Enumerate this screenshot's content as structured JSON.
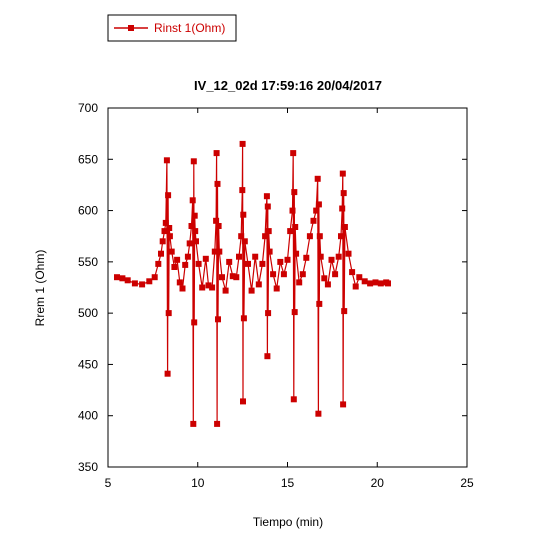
{
  "chart_data": {
    "type": "line",
    "title": "IV_12_02d 17:59:16  20/04/2017",
    "xlabel": "Tiempo (min)",
    "ylabel": "Rrem 1 (Ohm)",
    "xlim": [
      5,
      25
    ],
    "ylim": [
      350,
      700
    ],
    "xticks": [
      5,
      10,
      15,
      20,
      25
    ],
    "yticks": [
      350,
      400,
      450,
      500,
      550,
      600,
      650,
      700
    ],
    "grid": false,
    "legend": {
      "position": "top-left",
      "entries": [
        "Rinst 1(Ohm)"
      ]
    },
    "series": [
      {
        "name": "Rinst 1(Ohm)",
        "color": "#cc0000",
        "marker": "square",
        "x": [
          5.5,
          5.8,
          6.1,
          6.5,
          6.9,
          7.3,
          7.6,
          7.8,
          7.95,
          8.05,
          8.15,
          8.22,
          8.28,
          8.32,
          8.35,
          8.38,
          8.41,
          8.45,
          8.55,
          8.7,
          8.85,
          9.0,
          9.15,
          9.3,
          9.45,
          9.55,
          9.65,
          9.72,
          9.75,
          9.78,
          9.8,
          9.83,
          9.86,
          9.9,
          10.05,
          10.25,
          10.45,
          10.6,
          10.8,
          10.95,
          11.02,
          11.05,
          11.08,
          11.1,
          11.13,
          11.16,
          11.2,
          11.35,
          11.55,
          11.75,
          11.95,
          12.15,
          12.3,
          12.42,
          12.48,
          12.5,
          12.52,
          12.54,
          12.57,
          12.62,
          12.8,
          13.0,
          13.2,
          13.4,
          13.6,
          13.75,
          13.85,
          13.88,
          13.9,
          13.92,
          13.95,
          14.0,
          14.2,
          14.4,
          14.6,
          14.8,
          15.0,
          15.15,
          15.28,
          15.32,
          15.35,
          15.38,
          15.4,
          15.43,
          15.48,
          15.65,
          15.85,
          16.05,
          16.25,
          16.45,
          16.6,
          16.68,
          16.72,
          16.75,
          16.77,
          16.8,
          16.85,
          17.05,
          17.25,
          17.45,
          17.65,
          17.85,
          17.98,
          18.05,
          18.08,
          18.1,
          18.13,
          18.16,
          18.2,
          18.4,
          18.6,
          18.8,
          19.0,
          19.3,
          19.6,
          19.9,
          20.2,
          20.5,
          20.6
        ],
        "y": [
          535,
          534,
          532,
          529,
          528,
          531,
          535,
          548,
          558,
          570,
          580,
          588,
          649,
          441,
          615,
          500,
          583,
          575,
          560,
          545,
          552,
          530,
          524,
          547,
          555,
          568,
          585,
          610,
          392,
          648,
          491,
          595,
          580,
          570,
          548,
          525,
          553,
          527,
          525,
          560,
          590,
          656,
          392,
          626,
          494,
          585,
          560,
          535,
          522,
          550,
          536,
          535,
          555,
          575,
          620,
          665,
          414,
          596,
          495,
          570,
          548,
          522,
          555,
          528,
          548,
          575,
          614,
          458,
          604,
          500,
          580,
          560,
          538,
          524,
          550,
          538,
          552,
          580,
          600,
          656,
          416,
          618,
          501,
          584,
          558,
          530,
          538,
          554,
          575,
          590,
          600,
          631,
          402,
          606,
          509,
          575,
          555,
          534,
          528,
          552,
          538,
          555,
          575,
          602,
          636,
          411,
          617,
          502,
          584,
          558,
          540,
          526,
          535,
          531,
          529,
          530,
          529,
          530,
          529
        ]
      }
    ]
  }
}
